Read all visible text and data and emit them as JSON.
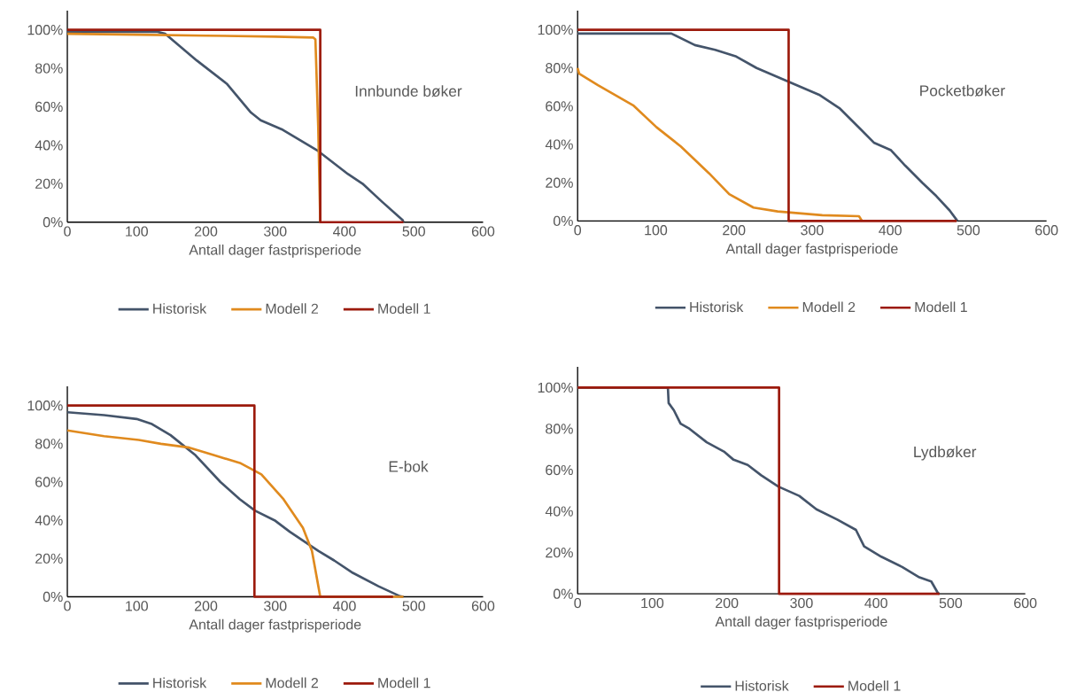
{
  "chart_data": [
    {
      "type": "line",
      "title": "Innbunde bøker",
      "xlabel": "Antall dager fastprisperiode",
      "legend": "bottom",
      "xlim": [
        0,
        600
      ],
      "xticks": [
        0,
        100,
        200,
        300,
        400,
        500,
        600
      ],
      "ylim": [
        0,
        110
      ],
      "yticks": [
        {
          "value": 0,
          "label": "0%"
        },
        {
          "value": 20,
          "label": "20%"
        },
        {
          "value": 40,
          "label": "40%"
        },
        {
          "value": 60,
          "label": "60%"
        },
        {
          "value": 80,
          "label": "80%"
        },
        {
          "value": 100,
          "label": "100%"
        }
      ],
      "series": [
        {
          "name": "Historisk",
          "color": "#44546a",
          "x": [
            0,
            130,
            141,
            187,
            230,
            265,
            279,
            311,
            362,
            405,
            426,
            453,
            484,
            485
          ],
          "values": [
            99,
            99,
            98,
            84,
            72,
            57,
            53,
            48,
            37,
            25,
            20,
            11,
            1,
            0
          ]
        },
        {
          "name": "Modell 2",
          "color": "#e08a1e",
          "x": [
            0,
            100,
            200,
            300,
            355,
            358,
            362,
            365
          ],
          "values": [
            98,
            97.5,
            97,
            96.5,
            96,
            95,
            50,
            0
          ]
        },
        {
          "name": "Modell 1",
          "color": "#9c1a0c",
          "x": [
            0,
            365,
            365,
            485
          ],
          "values": [
            100,
            100,
            0,
            0
          ]
        }
      ]
    },
    {
      "type": "line",
      "title": "Pocketbøker",
      "xlabel": "Antall dager fastprisperiode",
      "legend": "bottom",
      "xlim": [
        0,
        600
      ],
      "xticks": [
        0,
        100,
        200,
        300,
        400,
        500,
        600
      ],
      "ylim": [
        0,
        110
      ],
      "yticks": [
        {
          "value": 0,
          "label": "0%"
        },
        {
          "value": 20,
          "label": "20%"
        },
        {
          "value": 40,
          "label": "40%"
        },
        {
          "value": 60,
          "label": "60%"
        },
        {
          "value": 80,
          "label": "80%"
        },
        {
          "value": 100,
          "label": "100%"
        }
      ],
      "series": [
        {
          "name": "Historisk",
          "color": "#44546a",
          "x": [
            0,
            120,
            150,
            176,
            203,
            229,
            269,
            309,
            335,
            362,
            379,
            401,
            419,
            441,
            459,
            476,
            486
          ],
          "values": [
            98,
            98,
            92,
            89.5,
            86,
            80,
            73,
            66,
            59,
            48,
            41,
            37,
            29,
            20,
            13,
            5.5,
            0
          ]
        },
        {
          "name": "Modell 2",
          "color": "#e08a1e",
          "x": [
            0,
            2,
            26,
            71,
            101,
            132,
            168,
            194,
            225,
            256,
            313,
            360,
            364
          ],
          "values": [
            80,
            77,
            71,
            60.5,
            49,
            39,
            25,
            14,
            7,
            5,
            3,
            2.5,
            0
          ]
        },
        {
          "name": "Modell 1",
          "color": "#9c1a0c",
          "x": [
            0,
            270,
            270,
            485
          ],
          "values": [
            100,
            100,
            0,
            0
          ]
        }
      ]
    },
    {
      "type": "line",
      "title": "E-bok",
      "xlabel": "Antall dager fastprisperiode",
      "legend": "bottom",
      "xlim": [
        0,
        600
      ],
      "xticks": [
        0,
        100,
        200,
        300,
        400,
        500,
        600
      ],
      "ylim": [
        0,
        110
      ],
      "yticks": [
        {
          "value": 0,
          "label": "0%"
        },
        {
          "value": 20,
          "label": "20%"
        },
        {
          "value": 40,
          "label": "40%"
        },
        {
          "value": 60,
          "label": "60%"
        },
        {
          "value": 80,
          "label": "80%"
        },
        {
          "value": 100,
          "label": "100%"
        }
      ],
      "series": [
        {
          "name": "Historisk",
          "color": "#44546a",
          "x": [
            0,
            53,
            100,
            121,
            149,
            185,
            221,
            249,
            271,
            299,
            321,
            362,
            385,
            412,
            449,
            480,
            485
          ],
          "values": [
            96.5,
            95,
            93,
            90.5,
            84.5,
            74,
            60,
            51,
            45,
            40,
            34,
            24,
            19,
            12.5,
            5.5,
            0.3,
            0
          ]
        },
        {
          "name": "Modell 2",
          "color": "#e08a1e",
          "x": [
            0,
            53,
            103,
            135,
            176,
            212,
            249,
            280,
            312,
            340,
            353,
            365,
            485
          ],
          "values": [
            87,
            84,
            82,
            80,
            78,
            74,
            70,
            64,
            51,
            36,
            24,
            0,
            0
          ]
        },
        {
          "name": "Modell 1",
          "color": "#9c1a0c",
          "x": [
            0,
            270,
            270,
            470
          ],
          "values": [
            100,
            100,
            0,
            0
          ]
        }
      ]
    },
    {
      "type": "line",
      "title": "Lydbøker",
      "xlabel": "Antall dager fastprisperiode",
      "legend": "bottom",
      "xlim": [
        0,
        600
      ],
      "xticks": [
        0,
        100,
        200,
        300,
        400,
        500,
        600
      ],
      "ylim": [
        0,
        110
      ],
      "yticks": [
        {
          "value": 0,
          "label": "0%"
        },
        {
          "value": 20,
          "label": "20%"
        },
        {
          "value": 40,
          "label": "40%"
        },
        {
          "value": 60,
          "label": "60%"
        },
        {
          "value": 80,
          "label": "80%"
        },
        {
          "value": 100,
          "label": "100%"
        }
      ],
      "series": [
        {
          "name": "Historisk",
          "color": "#44546a",
          "x": [
            0,
            121,
            122,
            129,
            138,
            150,
            173,
            196,
            209,
            228,
            246,
            269,
            297,
            320,
            348,
            373,
            384,
            407,
            435,
            458,
            474,
            483,
            485
          ],
          "values": [
            100,
            100,
            92.5,
            89,
            82.5,
            80,
            73.5,
            69,
            65,
            62.5,
            57.5,
            52,
            47.5,
            41,
            36,
            31,
            23,
            18,
            13,
            8,
            6,
            0.3,
            0
          ]
        },
        {
          "name": "Modell 1",
          "color": "#9c1a0c",
          "x": [
            0,
            270,
            270,
            485
          ],
          "values": [
            100,
            100,
            0,
            0
          ]
        }
      ]
    }
  ]
}
